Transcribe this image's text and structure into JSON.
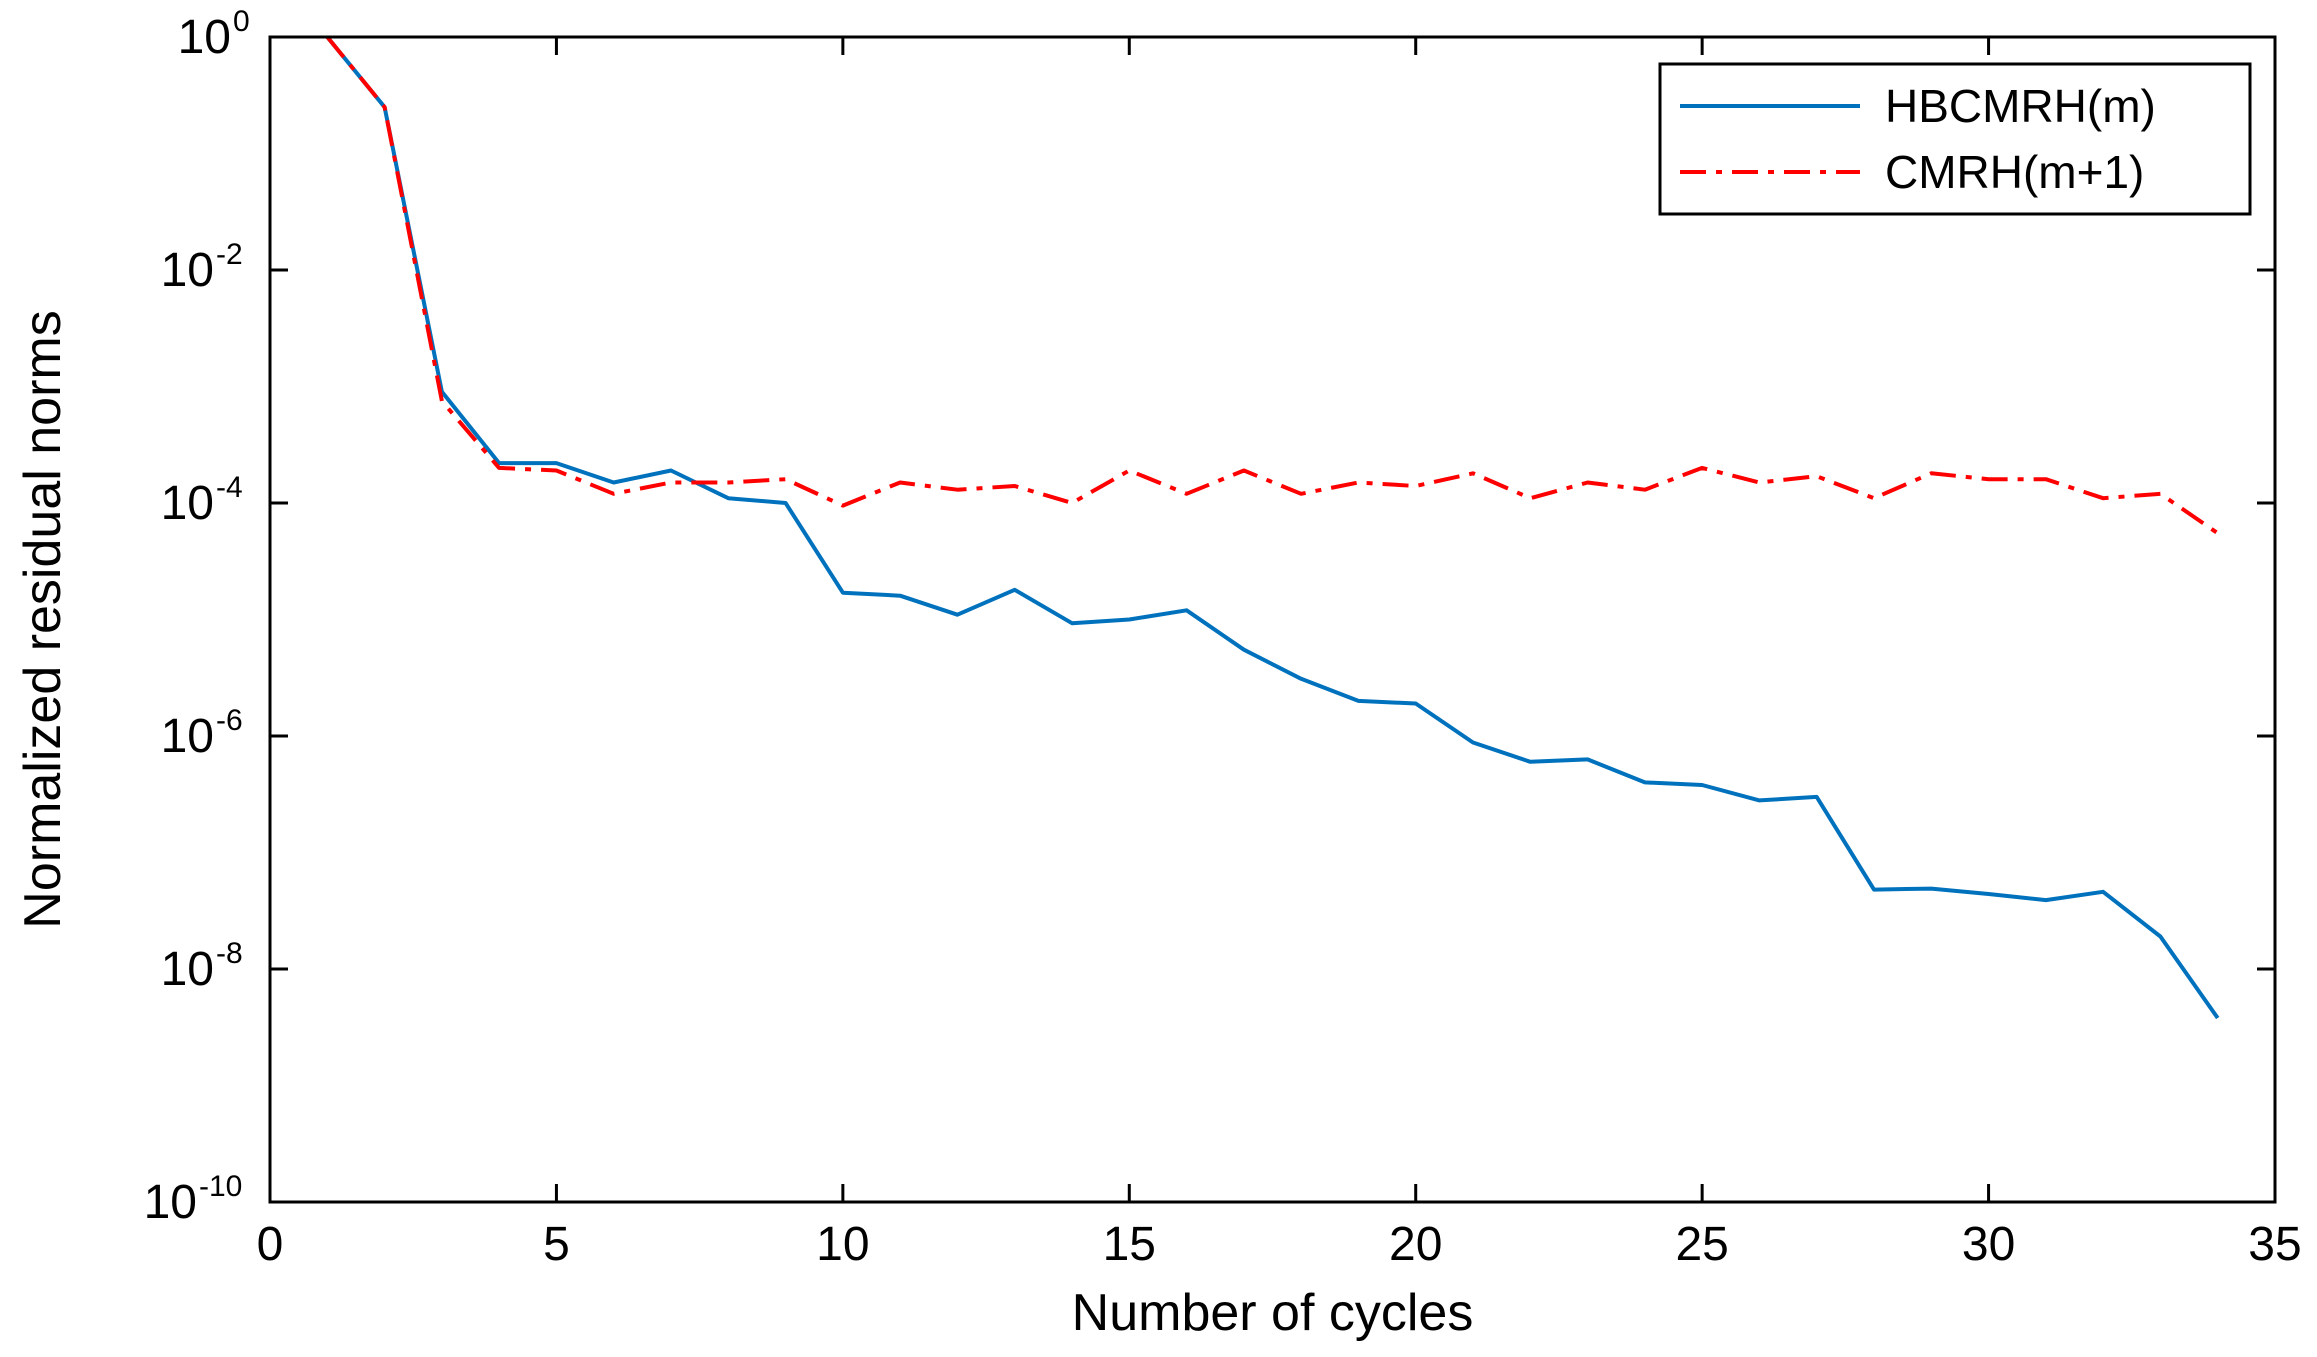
{
  "chart_data": {
    "type": "line",
    "title": "",
    "xlabel": "Number of cycles",
    "ylabel": "Normalized residual norms",
    "xscale": "linear",
    "yscale": "log",
    "xlim": [
      0,
      35
    ],
    "ylim": [
      1e-10,
      1
    ],
    "xticks": [
      0,
      5,
      10,
      15,
      20,
      25,
      30,
      35
    ],
    "yticks": [
      {
        "base": "10",
        "exp": "0"
      },
      {
        "base": "10",
        "exp": "-2"
      },
      {
        "base": "10",
        "exp": "-4"
      },
      {
        "base": "10",
        "exp": "-6"
      },
      {
        "base": "10",
        "exp": "-8"
      },
      {
        "base": "10",
        "exp": "-10"
      }
    ],
    "legend_position": "top-right",
    "x": [
      1,
      2,
      3,
      4,
      5,
      6,
      7,
      8,
      9,
      10,
      11,
      12,
      13,
      14,
      15,
      16,
      17,
      18,
      19,
      20,
      21,
      22,
      23,
      24,
      25,
      26,
      27,
      28,
      29,
      30,
      31,
      32,
      33,
      34
    ],
    "series": [
      {
        "name": "HBCMRH(m)",
        "color": "#0072bd",
        "style": "solid",
        "values": [
          1.0,
          0.25,
          0.0009,
          0.00022,
          0.00022,
          0.00015,
          0.00019,
          0.00011,
          0.0001,
          1.7e-05,
          1.6e-05,
          1.1e-05,
          1.8e-05,
          9.3e-06,
          1e-05,
          1.2e-05,
          5.5e-06,
          3.1e-06,
          2e-06,
          1.9e-06,
          8.8e-07,
          6e-07,
          6.3e-07,
          4e-07,
          3.8e-07,
          2.8e-07,
          3e-07,
          4.8e-08,
          4.9e-08,
          4.4e-08,
          3.9e-08,
          4.6e-08,
          1.9e-08,
          3.8e-09
        ]
      },
      {
        "name": "CMRH(m+1)",
        "color": "#ff0000",
        "style": "dashdot",
        "values": [
          1.0,
          0.25,
          0.00075,
          0.0002,
          0.00019,
          0.00012,
          0.00015,
          0.00015,
          0.00016,
          9.5e-05,
          0.00015,
          0.00013,
          0.00014,
          0.0001,
          0.00019,
          0.00012,
          0.00019,
          0.00012,
          0.00015,
          0.00014,
          0.00018,
          0.00011,
          0.00015,
          0.00013,
          0.0002,
          0.00015,
          0.00017,
          0.00011,
          0.00018,
          0.00016,
          0.00016,
          0.00011,
          0.00012,
          5.5e-05
        ]
      }
    ]
  }
}
